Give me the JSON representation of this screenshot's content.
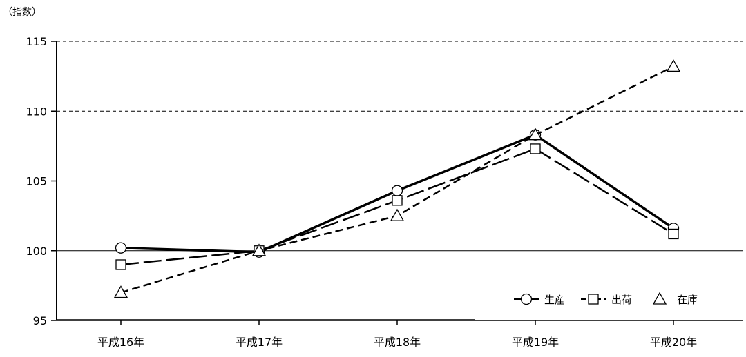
{
  "chart_data": {
    "type": "line",
    "y_unit_label": "（指数）",
    "categories": [
      "平成16年",
      "平成17年",
      "平成18年",
      "平成19年",
      "平成20年"
    ],
    "ylim": [
      95,
      115
    ],
    "yticks": [
      95,
      100,
      105,
      110,
      115
    ],
    "grid": "horizontal dashed",
    "legend_position": "bottom-right",
    "series": [
      {
        "name": "生産",
        "marker": "circle",
        "line_style": "solid",
        "values": [
          100.2,
          99.9,
          104.3,
          108.3,
          101.6
        ]
      },
      {
        "name": "出荷",
        "marker": "square",
        "line_style": "long-dash",
        "values": [
          99.0,
          100.0,
          103.6,
          107.3,
          101.2
        ]
      },
      {
        "name": "在庫",
        "marker": "triangle",
        "line_style": "short-dash",
        "values": [
          97.0,
          100.0,
          102.5,
          108.3,
          113.2
        ]
      }
    ]
  }
}
